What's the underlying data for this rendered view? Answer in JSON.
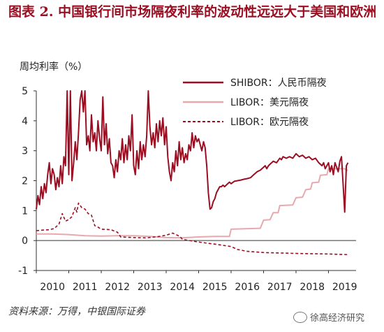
{
  "header": {
    "title": "图表 2. 中国银行间市场隔夜利率的波动性远远大于美国和欧洲"
  },
  "footer": {
    "source": "资料来源：万得，中银国际证券",
    "watermark": "徐高经济研究",
    "watermark_icon": "wechat-icon"
  },
  "colors": {
    "shibor": "#9b0e22",
    "libor_usd": "#e8a9ad",
    "libor_eur": "#9b0e22",
    "axis": "#333333"
  },
  "chart_data": {
    "type": "line",
    "title": "图表 2. 中国银行间市场隔夜利率的波动性远远大于美国和欧洲",
    "ylabel": "周均利率（%）",
    "xlabel": "",
    "ylim": [
      -1,
      5
    ],
    "xlim": [
      2010.0,
      2019.85
    ],
    "yticks": [
      "5",
      "4",
      "3",
      "2",
      "1",
      "0",
      "-1"
    ],
    "xticks": [
      "2010",
      "2011",
      "2012",
      "2013",
      "2014",
      "2015",
      "2016",
      "2017",
      "2018",
      "2019"
    ],
    "grid": false,
    "legend_position": "top-right",
    "series": [
      {
        "name": "SHIBOR：人民币隔夜",
        "style": "solid-thick",
        "points": [
          [
            2010.0,
            1.05
          ],
          [
            2010.05,
            1.5
          ],
          [
            2010.1,
            1.2
          ],
          [
            2010.15,
            1.8
          ],
          [
            2010.2,
            1.4
          ],
          [
            2010.25,
            1.9
          ],
          [
            2010.3,
            1.6
          ],
          [
            2010.35,
            2.2
          ],
          [
            2010.4,
            2.6
          ],
          [
            2010.45,
            1.9
          ],
          [
            2010.5,
            2.4
          ],
          [
            2010.55,
            2.2
          ],
          [
            2010.6,
            1.7
          ],
          [
            2010.65,
            2.1
          ],
          [
            2010.7,
            1.8
          ],
          [
            2010.75,
            2.5
          ],
          [
            2010.8,
            1.9
          ],
          [
            2010.85,
            2.8
          ],
          [
            2010.9,
            2.5
          ],
          [
            2010.95,
            5.0
          ],
          [
            2011.0,
            2.2
          ],
          [
            2011.05,
            5.0
          ],
          [
            2011.1,
            2.0
          ],
          [
            2011.15,
            2.6
          ],
          [
            2011.2,
            3.3
          ],
          [
            2011.25,
            2.7
          ],
          [
            2011.3,
            3.6
          ],
          [
            2011.35,
            4.7
          ],
          [
            2011.4,
            5.0
          ],
          [
            2011.45,
            4.3
          ],
          [
            2011.5,
            5.0
          ],
          [
            2011.55,
            3.2
          ],
          [
            2011.6,
            3.5
          ],
          [
            2011.65,
            3.0
          ],
          [
            2011.7,
            4.2
          ],
          [
            2011.75,
            3.3
          ],
          [
            2011.8,
            3.6
          ],
          [
            2011.85,
            3.0
          ],
          [
            2011.9,
            4.0
          ],
          [
            2011.95,
            3.4
          ],
          [
            2012.0,
            3.0
          ],
          [
            2012.05,
            4.8
          ],
          [
            2012.1,
            3.2
          ],
          [
            2012.15,
            3.9
          ],
          [
            2012.2,
            2.9
          ],
          [
            2012.25,
            3.4
          ],
          [
            2012.3,
            2.6
          ],
          [
            2012.35,
            2.5
          ],
          [
            2012.4,
            2.1
          ],
          [
            2012.45,
            2.7
          ],
          [
            2012.5,
            2.3
          ],
          [
            2012.55,
            3.0
          ],
          [
            2012.6,
            2.7
          ],
          [
            2012.65,
            3.4
          ],
          [
            2012.7,
            2.6
          ],
          [
            2012.75,
            3.2
          ],
          [
            2012.8,
            2.7
          ],
          [
            2012.85,
            3.5
          ],
          [
            2012.9,
            3.0
          ],
          [
            2012.95,
            4.2
          ],
          [
            2013.0,
            2.5
          ],
          [
            2013.05,
            2.2
          ],
          [
            2013.1,
            3.0
          ],
          [
            2013.15,
            2.4
          ],
          [
            2013.2,
            3.3
          ],
          [
            2013.25,
            2.7
          ],
          [
            2013.3,
            3.2
          ],
          [
            2013.35,
            2.8
          ],
          [
            2013.4,
            3.5
          ],
          [
            2013.45,
            5.0
          ],
          [
            2013.5,
            3.8
          ],
          [
            2013.55,
            3.2
          ],
          [
            2013.6,
            3.6
          ],
          [
            2013.65,
            3.1
          ],
          [
            2013.7,
            3.9
          ],
          [
            2013.75,
            3.3
          ],
          [
            2013.8,
            4.0
          ],
          [
            2013.85,
            3.5
          ],
          [
            2013.9,
            4.1
          ],
          [
            2013.95,
            3.2
          ],
          [
            2014.0,
            3.8
          ],
          [
            2014.05,
            2.8
          ],
          [
            2014.1,
            2.3
          ],
          [
            2014.15,
            2.0
          ],
          [
            2014.2,
            2.6
          ],
          [
            2014.25,
            2.3
          ],
          [
            2014.3,
            3.0
          ],
          [
            2014.35,
            2.5
          ],
          [
            2014.4,
            3.3
          ],
          [
            2014.45,
            2.7
          ],
          [
            2014.5,
            3.1
          ],
          [
            2014.55,
            2.6
          ],
          [
            2014.6,
            2.9
          ],
          [
            2014.65,
            2.7
          ],
          [
            2014.7,
            3.2
          ],
          [
            2014.75,
            3.0
          ],
          [
            2014.8,
            3.6
          ],
          [
            2014.85,
            3.1
          ],
          [
            2014.9,
            3.5
          ],
          [
            2014.95,
            3.3
          ],
          [
            2015.0,
            3.4
          ],
          [
            2015.05,
            3.2
          ],
          [
            2015.1,
            3.0
          ],
          [
            2015.15,
            3.3
          ],
          [
            2015.2,
            3.1
          ],
          [
            2015.25,
            2.5
          ],
          [
            2015.3,
            1.6
          ],
          [
            2015.35,
            1.05
          ],
          [
            2015.4,
            1.1
          ],
          [
            2015.45,
            1.3
          ],
          [
            2015.5,
            1.4
          ],
          [
            2015.55,
            1.6
          ],
          [
            2015.6,
            1.7
          ],
          [
            2015.65,
            1.8
          ],
          [
            2015.7,
            1.8
          ],
          [
            2015.75,
            1.85
          ],
          [
            2015.8,
            1.8
          ],
          [
            2015.85,
            1.85
          ],
          [
            2015.9,
            1.9
          ],
          [
            2015.95,
            1.95
          ],
          [
            2016.0,
            1.9
          ],
          [
            2016.1,
            1.98
          ],
          [
            2016.2,
            2.0
          ],
          [
            2016.3,
            2.02
          ],
          [
            2016.4,
            2.05
          ],
          [
            2016.5,
            2.07
          ],
          [
            2016.6,
            2.1
          ],
          [
            2016.7,
            2.2
          ],
          [
            2016.8,
            2.3
          ],
          [
            2016.9,
            2.35
          ],
          [
            2017.0,
            2.45
          ],
          [
            2017.05,
            2.5
          ],
          [
            2017.1,
            2.4
          ],
          [
            2017.15,
            2.5
          ],
          [
            2017.2,
            2.55
          ],
          [
            2017.3,
            2.65
          ],
          [
            2017.4,
            2.6
          ],
          [
            2017.5,
            2.75
          ],
          [
            2017.55,
            2.7
          ],
          [
            2017.6,
            2.8
          ],
          [
            2017.7,
            2.75
          ],
          [
            2017.8,
            2.8
          ],
          [
            2017.9,
            2.75
          ],
          [
            2018.0,
            2.9
          ],
          [
            2018.1,
            2.8
          ],
          [
            2018.2,
            2.85
          ],
          [
            2018.3,
            2.75
          ],
          [
            2018.4,
            2.8
          ],
          [
            2018.5,
            2.7
          ],
          [
            2018.6,
            2.75
          ],
          [
            2018.7,
            2.6
          ],
          [
            2018.8,
            2.5
          ],
          [
            2018.85,
            2.6
          ],
          [
            2018.9,
            2.4
          ],
          [
            2019.0,
            2.6
          ],
          [
            2019.05,
            2.3
          ],
          [
            2019.1,
            2.5
          ],
          [
            2019.15,
            2.2
          ],
          [
            2019.2,
            2.6
          ],
          [
            2019.25,
            2.45
          ],
          [
            2019.3,
            2.3
          ],
          [
            2019.35,
            2.65
          ],
          [
            2019.4,
            2.8
          ],
          [
            2019.45,
            1.9
          ],
          [
            2019.5,
            0.95
          ],
          [
            2019.55,
            2.5
          ],
          [
            2019.6,
            2.6
          ]
        ]
      },
      {
        "name": "LIBOR：美元隔夜",
        "style": "solid-light",
        "points": [
          [
            2010.0,
            0.22
          ],
          [
            2010.5,
            0.22
          ],
          [
            2011.0,
            0.2
          ],
          [
            2011.5,
            0.16
          ],
          [
            2012.0,
            0.15
          ],
          [
            2012.5,
            0.16
          ],
          [
            2013.0,
            0.16
          ],
          [
            2013.5,
            0.14
          ],
          [
            2014.0,
            0.1
          ],
          [
            2014.5,
            0.09
          ],
          [
            2015.0,
            0.12
          ],
          [
            2015.5,
            0.14
          ],
          [
            2015.95,
            0.14
          ],
          [
            2016.0,
            0.38
          ],
          [
            2016.9,
            0.41
          ],
          [
            2017.0,
            0.68
          ],
          [
            2017.2,
            0.7
          ],
          [
            2017.3,
            0.93
          ],
          [
            2017.45,
            0.93
          ],
          [
            2017.5,
            1.17
          ],
          [
            2017.9,
            1.19
          ],
          [
            2018.0,
            1.43
          ],
          [
            2018.2,
            1.45
          ],
          [
            2018.3,
            1.7
          ],
          [
            2018.45,
            1.72
          ],
          [
            2018.5,
            1.93
          ],
          [
            2018.7,
            1.95
          ],
          [
            2018.75,
            2.18
          ],
          [
            2018.95,
            2.2
          ],
          [
            2019.0,
            2.4
          ],
          [
            2019.5,
            2.4
          ],
          [
            2019.55,
            2.35
          ],
          [
            2019.6,
            2.35
          ]
        ]
      },
      {
        "name": "LIBOR：欧元隔夜",
        "style": "dashed",
        "points": [
          [
            2010.0,
            0.33
          ],
          [
            2010.2,
            0.35
          ],
          [
            2010.4,
            0.36
          ],
          [
            2010.55,
            0.4
          ],
          [
            2010.7,
            0.55
          ],
          [
            2010.8,
            0.9
          ],
          [
            2010.9,
            0.65
          ],
          [
            2011.0,
            0.7
          ],
          [
            2011.1,
            0.8
          ],
          [
            2011.2,
            1.1
          ],
          [
            2011.25,
            0.95
          ],
          [
            2011.3,
            1.25
          ],
          [
            2011.4,
            1.1
          ],
          [
            2011.5,
            1.05
          ],
          [
            2011.6,
            0.9
          ],
          [
            2011.7,
            0.85
          ],
          [
            2011.8,
            0.5
          ],
          [
            2011.9,
            0.45
          ],
          [
            2012.0,
            0.38
          ],
          [
            2012.3,
            0.36
          ],
          [
            2012.5,
            0.28
          ],
          [
            2012.6,
            0.12
          ],
          [
            2013.0,
            0.1
          ],
          [
            2013.4,
            0.09
          ],
          [
            2013.8,
            0.14
          ],
          [
            2014.0,
            0.18
          ],
          [
            2014.2,
            0.25
          ],
          [
            2014.4,
            0.15
          ],
          [
            2014.5,
            0.05
          ],
          [
            2014.6,
            0.02
          ],
          [
            2015.0,
            -0.05
          ],
          [
            2015.5,
            -0.12
          ],
          [
            2016.0,
            -0.2
          ],
          [
            2016.2,
            -0.3
          ],
          [
            2016.5,
            -0.36
          ],
          [
            2017.0,
            -0.4
          ],
          [
            2018.0,
            -0.43
          ],
          [
            2019.0,
            -0.45
          ],
          [
            2019.6,
            -0.47
          ]
        ]
      }
    ]
  }
}
